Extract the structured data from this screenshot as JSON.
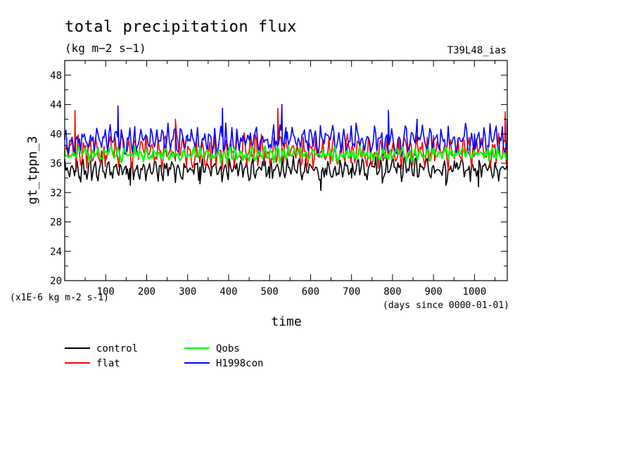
{
  "chart_data": {
    "type": "line",
    "title": "total precipitation flux",
    "subtitle": "(kg m−2 s−1)",
    "run_label": "T39L48_ias",
    "xlabel": "time",
    "x_unit_note": "(days since 0000-01-01)",
    "ylabel": "gt_tppn_3",
    "y_unit_note": "(x1E-6 kg m-2 s-1)",
    "xlim": [
      0,
      1080
    ],
    "ylim": [
      20,
      50
    ],
    "x_ticks": [
      100,
      200,
      300,
      400,
      500,
      600,
      700,
      800,
      900,
      1000
    ],
    "y_ticks": [
      20,
      24,
      28,
      32,
      36,
      40,
      44,
      48
    ],
    "grid": false,
    "legend_position": "bottom-left",
    "series": [
      {
        "name": "control",
        "color": "#000000",
        "mean": 35.2,
        "amp": 1.1,
        "seed": 11,
        "x": [
          0,
          25,
          35,
          150,
          160,
          330,
          500,
          625,
          700,
          775,
          930,
          1010,
          1070,
          1080
        ],
        "y": [
          36.5,
          35,
          34,
          34.5,
          33,
          33.2,
          34,
          32.3,
          34,
          33.3,
          33,
          32.8,
          35.5,
          35
        ]
      },
      {
        "name": "flat",
        "color": "#ff0000",
        "mean": 37.6,
        "amp": 1.5,
        "seed": 23,
        "x": [
          0,
          25,
          100,
          200,
          270,
          400,
          520,
          530,
          700,
          1000,
          1075,
          1080
        ],
        "y": [
          38.5,
          43.2,
          37,
          38,
          42,
          37.5,
          43.5,
          38,
          38,
          38,
          43,
          41.5
        ]
      },
      {
        "name": "Qobs",
        "color": "#00ff00",
        "mean": 37.2,
        "amp": 0.7,
        "seed": 37,
        "x": [
          0,
          100,
          300,
          500,
          700,
          900,
          1080
        ],
        "y": [
          37,
          37.5,
          37,
          37.2,
          37,
          37.3,
          37.5
        ]
      },
      {
        "name": "H1998con",
        "color": "#0000ff",
        "mean": 39.2,
        "amp": 1.4,
        "seed": 53,
        "x": [
          0,
          130,
          300,
          385,
          530,
          540,
          700,
          790,
          860,
          1000,
          1080
        ],
        "y": [
          40,
          43.8,
          39,
          43.5,
          44,
          39,
          40.5,
          43.2,
          42,
          40,
          42
        ]
      }
    ]
  }
}
